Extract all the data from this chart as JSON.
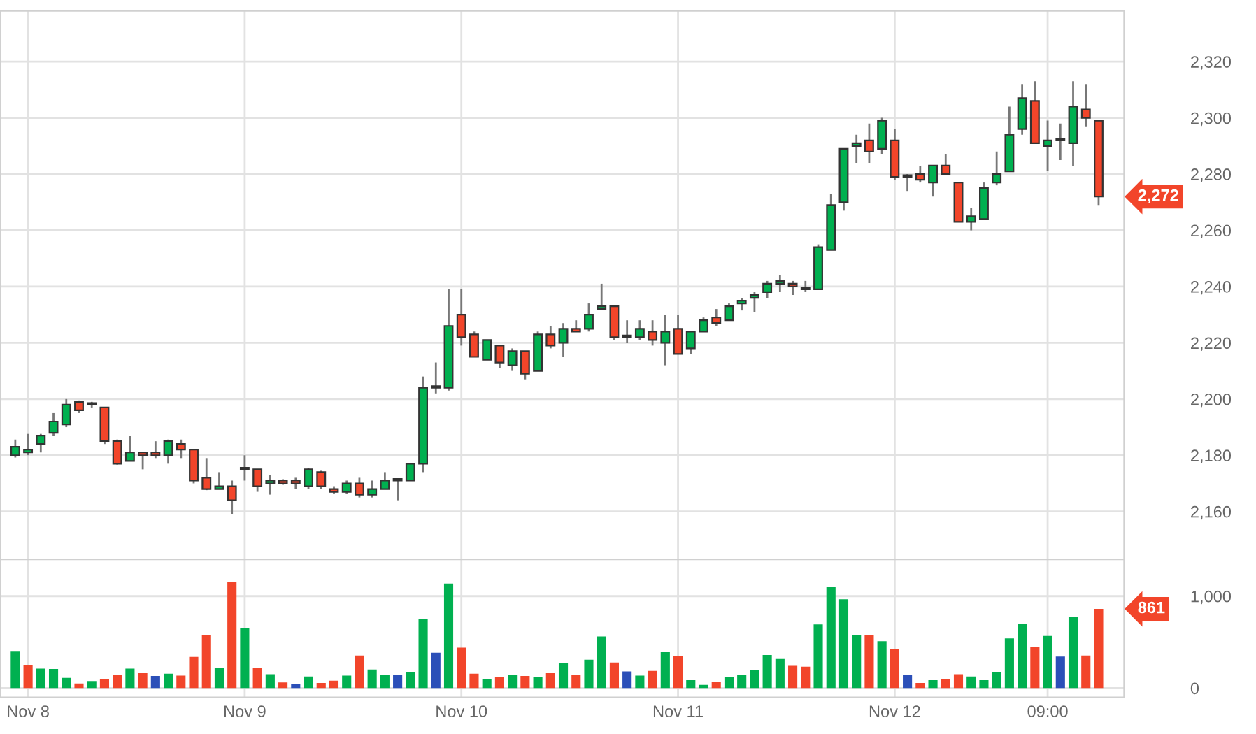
{
  "chart_data": [
    {
      "type": "candlestick",
      "categories": [
        null,
        null,
        null,
        null,
        null,
        null,
        null,
        null,
        null,
        null,
        null,
        null,
        null,
        null,
        null,
        null,
        null,
        null,
        null,
        null,
        null,
        null,
        null,
        null,
        null,
        null,
        null,
        null,
        null,
        null,
        null,
        null,
        null,
        null,
        null,
        null,
        null,
        null,
        null,
        null,
        null,
        null,
        null,
        null,
        null,
        null,
        null,
        null,
        null,
        null,
        null,
        null,
        null,
        null,
        null,
        null,
        null,
        null,
        null,
        null,
        null,
        null,
        null,
        null,
        null,
        null,
        null,
        null,
        null,
        null,
        null,
        null,
        null,
        null,
        null,
        null,
        null,
        null,
        null,
        null,
        null,
        null,
        null,
        null,
        null,
        null
      ],
      "ohlc": [
        [
          2180,
          2185.6,
          2179.2,
          2183
        ],
        [
          2181,
          2187.6,
          2180,
          2182
        ],
        [
          2184,
          2187.6,
          2181,
          2187
        ],
        [
          2188,
          2195,
          2187,
          2192
        ],
        [
          2191,
          2200,
          2190,
          2198
        ],
        [
          2199,
          2199.5,
          2195,
          2196
        ],
        [
          2198,
          2199,
          2197,
          2198
        ],
        [
          2197,
          2197,
          2184,
          2185
        ],
        [
          2185,
          2185.6,
          2176.7,
          2177
        ],
        [
          2178,
          2187,
          2178,
          2181
        ],
        [
          2181,
          2181,
          2175,
          2180
        ],
        [
          2181,
          2185,
          2179,
          2180
        ],
        [
          2180,
          2185.6,
          2177,
          2185
        ],
        [
          2184,
          2185.6,
          2179,
          2182
        ],
        [
          2182,
          2182,
          2170,
          2171
        ],
        [
          2172,
          2179,
          2167.6,
          2168
        ],
        [
          2168,
          2174,
          2168,
          2169
        ],
        [
          2169,
          2171,
          2159,
          2164
        ],
        [
          2175,
          2180,
          2171,
          2175
        ],
        [
          2175,
          2175,
          2167,
          2169
        ],
        [
          2170,
          2173,
          2166,
          2171
        ],
        [
          2171,
          2171.5,
          2169.5,
          2170
        ],
        [
          2171,
          2172,
          2168,
          2170
        ],
        [
          2169,
          2175.5,
          2168,
          2175
        ],
        [
          2174,
          2174.5,
          2168,
          2169
        ],
        [
          2168,
          2169,
          2166.4,
          2167
        ],
        [
          2167,
          2171,
          2166.4,
          2170
        ],
        [
          2170,
          2172,
          2165,
          2166
        ],
        [
          2166,
          2171,
          2165,
          2168
        ],
        [
          2168,
          2174,
          2168,
          2171
        ],
        [
          2171,
          2171,
          2164,
          2171
        ],
        [
          2171,
          2177,
          2171,
          2177
        ],
        [
          2177,
          2208,
          2174,
          2204
        ],
        [
          2204,
          2213,
          2202,
          2204
        ],
        [
          2204,
          2239,
          2203,
          2226
        ],
        [
          2230,
          2239,
          2219,
          2222
        ],
        [
          2223,
          2224,
          2215,
          2215
        ],
        [
          2214,
          2221,
          2214,
          2221
        ],
        [
          2219,
          2219,
          2211,
          2213
        ],
        [
          2212,
          2218,
          2210,
          2217
        ],
        [
          2217,
          2217,
          2207,
          2209
        ],
        [
          2210,
          2224,
          2210,
          2223
        ],
        [
          2223,
          2226,
          2218,
          2219
        ],
        [
          2220,
          2227,
          2215,
          2225
        ],
        [
          2225,
          2228,
          2224,
          2224
        ],
        [
          2225,
          2234,
          2224,
          2230
        ],
        [
          2232,
          2241,
          2232,
          2233
        ],
        [
          2233,
          2233.4,
          2221,
          2222
        ],
        [
          2222,
          2228,
          2220,
          2222
        ],
        [
          2222,
          2228,
          2221,
          2225
        ],
        [
          2224,
          2228,
          2219,
          2221
        ],
        [
          2220,
          2230,
          2212,
          2224
        ],
        [
          2225,
          2230,
          2216,
          2216
        ],
        [
          2218,
          2224,
          2216,
          2224
        ],
        [
          2224,
          2229,
          2224,
          2228
        ],
        [
          2229,
          2232,
          2226,
          2227
        ],
        [
          2228,
          2234,
          2228,
          2233
        ],
        [
          2234,
          2236,
          2231.5,
          2235
        ],
        [
          2236,
          2238,
          2231,
          2237
        ],
        [
          2238,
          2242,
          2236,
          2241
        ],
        [
          2241,
          2244,
          2238,
          2242
        ],
        [
          2241,
          2242,
          2237,
          2240
        ],
        [
          2239,
          2242,
          2238,
          2239
        ],
        [
          2239,
          2255,
          2239,
          2254
        ],
        [
          2253,
          2273,
          2253,
          2269
        ],
        [
          2270,
          2289,
          2267,
          2289
        ],
        [
          2290,
          2294,
          2284,
          2291
        ],
        [
          2292,
          2298,
          2284,
          2288
        ],
        [
          2289,
          2300,
          2287,
          2299
        ],
        [
          2292,
          2296,
          2278,
          2279
        ],
        [
          2279,
          2280,
          2274,
          2279
        ],
        [
          2280,
          2283,
          2277,
          2278
        ],
        [
          2277,
          2283,
          2272,
          2283
        ],
        [
          2283,
          2287,
          2280,
          2280
        ],
        [
          2277,
          2277,
          2263,
          2263
        ],
        [
          2263,
          2268,
          2260,
          2265
        ],
        [
          2264,
          2277,
          2264,
          2275
        ],
        [
          2277,
          2288,
          2276,
          2280
        ],
        [
          2281,
          2304,
          2281,
          2294
        ],
        [
          2296,
          2312,
          2294,
          2307
        ],
        [
          2306,
          2313,
          2291,
          2291
        ],
        [
          2290,
          2299,
          2281,
          2292
        ],
        [
          2292,
          2298,
          2285,
          2292
        ],
        [
          2291,
          2313,
          2283,
          2304
        ],
        [
          2303,
          2312,
          2297,
          2300
        ],
        [
          2299,
          2299,
          2269,
          2272
        ]
      ],
      "colors": [
        "#00b050",
        "#00b050",
        "#00b050",
        "#00b050",
        "#00b050",
        "#f2452a",
        "#333333",
        "#f2452a",
        "#f2452a",
        "#00b050",
        "#f2452a",
        "#f2452a",
        "#00b050",
        "#f2452a",
        "#f2452a",
        "#f2452a",
        "#00b050",
        "#f2452a",
        "#333333",
        "#f2452a",
        "#00b050",
        "#f2452a",
        "#f2452a",
        "#00b050",
        "#f2452a",
        "#f2452a",
        "#00b050",
        "#f2452a",
        "#00b050",
        "#00b050",
        "#333333",
        "#00b050",
        "#00b050",
        "#333333",
        "#00b050",
        "#f2452a",
        "#f2452a",
        "#00b050",
        "#f2452a",
        "#00b050",
        "#f2452a",
        "#00b050",
        "#f2452a",
        "#00b050",
        "#f2452a",
        "#00b050",
        "#00b050",
        "#f2452a",
        "#333333",
        "#00b050",
        "#f2452a",
        "#00b050",
        "#f2452a",
        "#00b050",
        "#00b050",
        "#f2452a",
        "#00b050",
        "#00b050",
        "#00b050",
        "#00b050",
        "#00b050",
        "#f2452a",
        "#333333",
        "#00b050",
        "#00b050",
        "#00b050",
        "#00b050",
        "#f2452a",
        "#00b050",
        "#f2452a",
        "#333333",
        "#f2452a",
        "#00b050",
        "#f2452a",
        "#f2452a",
        "#00b050",
        "#00b050",
        "#00b050",
        "#00b050",
        "#00b050",
        "#f2452a",
        "#00b050",
        "#333333",
        "#00b050",
        "#f2452a",
        "#f2452a"
      ],
      "ylim": [
        2143,
        2338
      ],
      "yticks": [
        {
          "value": 2160,
          "label": "2,160"
        },
        {
          "value": 2180,
          "label": "2,180"
        },
        {
          "value": 2200,
          "label": "2,200"
        },
        {
          "value": 2220,
          "label": "2,220"
        },
        {
          "value": 2240,
          "label": "2,240"
        },
        {
          "value": 2260,
          "label": "2,260"
        },
        {
          "value": 2280,
          "label": "2,280"
        },
        {
          "value": 2300,
          "label": "2,300"
        },
        {
          "value": 2320,
          "label": "2,320"
        }
      ],
      "grid": true,
      "tick_labels": "y",
      "annotations": [
        "2,272"
      ]
    },
    {
      "type": "bar",
      "categories": [
        null,
        "Nov 8",
        null,
        null,
        null,
        null,
        null,
        null,
        null,
        null,
        null,
        null,
        null,
        null,
        null,
        null,
        null,
        null,
        "Nov 9",
        null,
        null,
        null,
        null,
        null,
        null,
        null,
        null,
        null,
        null,
        null,
        null,
        null,
        null,
        null,
        null,
        "Nov 10",
        null,
        null,
        null,
        null,
        null,
        null,
        null,
        null,
        null,
        null,
        null,
        null,
        null,
        null,
        null,
        null,
        "Nov 11",
        null,
        null,
        null,
        null,
        null,
        null,
        null,
        null,
        null,
        null,
        null,
        null,
        null,
        null,
        null,
        null,
        "Nov 12",
        null,
        null,
        null,
        null,
        null,
        null,
        null,
        null,
        null,
        null,
        null,
        "09:00",
        null,
        null,
        null,
        null
      ],
      "values": [
        404,
        253,
        212,
        207,
        111,
        50,
        76,
        101,
        146,
        212,
        162,
        131,
        157,
        136,
        338,
        581,
        217,
        1151,
        651,
        217,
        151,
        61,
        45,
        126,
        56,
        81,
        136,
        354,
        202,
        141,
        141,
        172,
        747,
        384,
        1136,
        439,
        157,
        101,
        121,
        141,
        131,
        121,
        162,
        273,
        146,
        308,
        561,
        278,
        182,
        136,
        187,
        394,
        348,
        86,
        35,
        71,
        121,
        141,
        197,
        359,
        323,
        242,
        232,
        692,
        1096,
        965,
        581,
        576,
        510,
        429,
        146,
        56,
        86,
        96,
        151,
        126,
        86,
        172,
        540,
        702,
        449,
        566,
        343,
        773,
        354,
        861
      ],
      "colors": [
        "#00b050",
        "#f2452a",
        "#00b050",
        "#00b050",
        "#00b050",
        "#f2452a",
        "#00b050",
        "#f2452a",
        "#f2452a",
        "#00b050",
        "#f2452a",
        "#2b4fb8",
        "#00b050",
        "#f2452a",
        "#f2452a",
        "#f2452a",
        "#00b050",
        "#f2452a",
        "#00b050",
        "#f2452a",
        "#00b050",
        "#f2452a",
        "#2b4fb8",
        "#00b050",
        "#f2452a",
        "#f2452a",
        "#00b050",
        "#f2452a",
        "#00b050",
        "#00b050",
        "#2b4fb8",
        "#00b050",
        "#00b050",
        "#2b4fb8",
        "#00b050",
        "#f2452a",
        "#f2452a",
        "#00b050",
        "#f2452a",
        "#00b050",
        "#f2452a",
        "#00b050",
        "#f2452a",
        "#00b050",
        "#f2452a",
        "#00b050",
        "#00b050",
        "#f2452a",
        "#2b4fb8",
        "#00b050",
        "#f2452a",
        "#00b050",
        "#f2452a",
        "#00b050",
        "#00b050",
        "#f2452a",
        "#00b050",
        "#00b050",
        "#00b050",
        "#00b050",
        "#00b050",
        "#f2452a",
        "#f2452a",
        "#00b050",
        "#00b050",
        "#00b050",
        "#00b050",
        "#f2452a",
        "#00b050",
        "#f2452a",
        "#2b4fb8",
        "#f2452a",
        "#00b050",
        "#f2452a",
        "#f2452a",
        "#00b050",
        "#00b050",
        "#00b050",
        "#00b050",
        "#00b050",
        "#f2452a",
        "#00b050",
        "#2b4fb8",
        "#00b050",
        "#f2452a",
        "#f2452a"
      ],
      "ylim": [
        -100,
        1400
      ],
      "yticks": [
        0,
        {
          "value": 1000,
          "label": "1,000"
        }
      ],
      "grid": true,
      "annotations": [
        "861"
      ]
    }
  ]
}
